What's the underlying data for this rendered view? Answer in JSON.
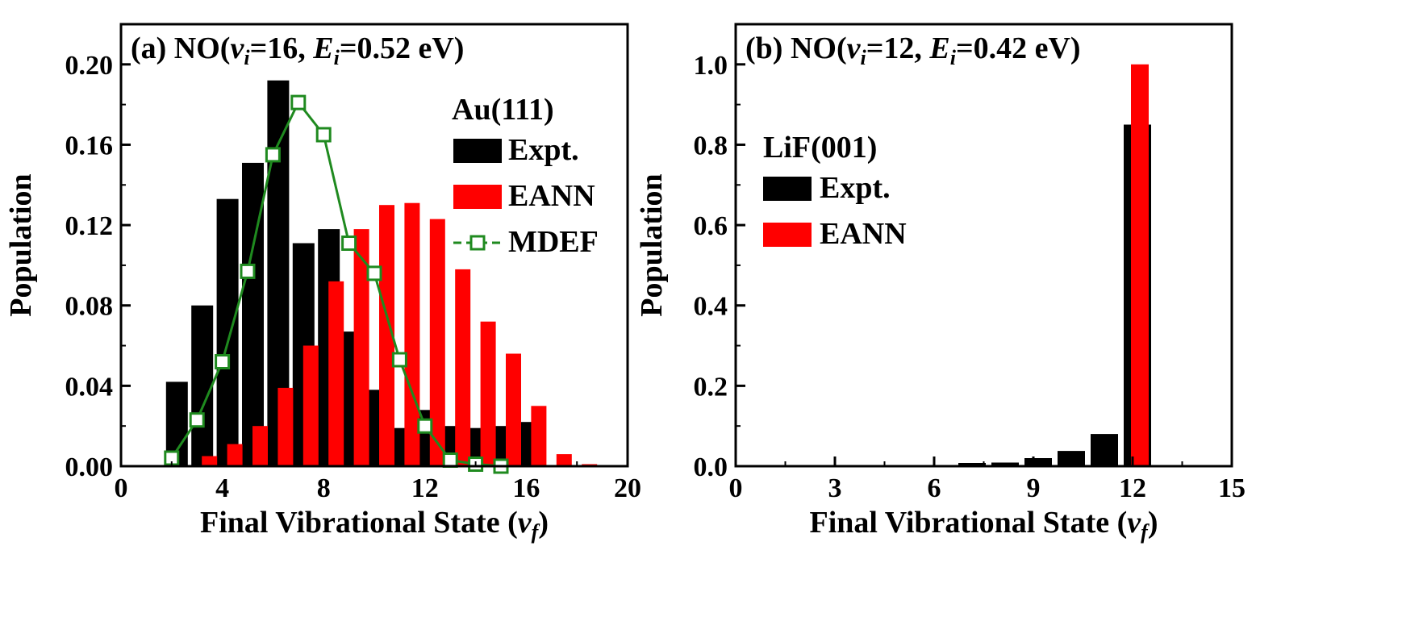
{
  "colors": {
    "expt": "#000000",
    "eann": "#ff0000",
    "mdef": "#1f8a1f",
    "frame": "#000000",
    "background": "#ffffff"
  },
  "chart_data": [
    {
      "type": "bar",
      "panel": "(a)",
      "title": {
        "prefix": "(a) NO(",
        "v": "v",
        "v_sub": "i",
        "v_value": "=16, ",
        "e": "E",
        "e_sub": "i",
        "e_value": "=0.52 eV)"
      },
      "xlabel": {
        "text": "Final Vibrational State (",
        "var": "v",
        "sub": "f",
        "close": ")"
      },
      "ylabel": "Population",
      "xlim": [
        0,
        20
      ],
      "ylim": [
        0,
        0.22
      ],
      "xticks": [
        0,
        4,
        8,
        12,
        16,
        20
      ],
      "xtick_labels": [
        "0",
        "4",
        "8",
        "12",
        "16",
        "20"
      ],
      "yticks": [
        0,
        0.04,
        0.08,
        0.12,
        0.16,
        0.2
      ],
      "ytick_labels": [
        "0.00",
        "0.04",
        "0.08",
        "0.12",
        "0.16",
        "0.20"
      ],
      "legend_title": "Au(111)",
      "legend_placement": "top-right",
      "series": [
        {
          "name": "Expt.",
          "kind": "bar",
          "color": "#000000",
          "x": [
            2,
            3,
            4,
            5,
            6,
            7,
            8,
            9,
            10,
            11,
            12,
            13,
            14,
            15,
            16
          ],
          "y": [
            0.042,
            0.08,
            0.133,
            0.151,
            0.192,
            0.111,
            0.118,
            0.067,
            0.038,
            0.019,
            0.028,
            0.02,
            0.019,
            0.02,
            0.022
          ]
        },
        {
          "name": "EANN",
          "kind": "bar",
          "color": "#ff0000",
          "x": [
            3,
            4,
            5,
            6,
            7,
            8,
            9,
            10,
            11,
            12,
            13,
            14,
            15,
            16,
            17,
            18
          ],
          "y": [
            0.005,
            0.011,
            0.02,
            0.039,
            0.06,
            0.092,
            0.118,
            0.13,
            0.131,
            0.123,
            0.098,
            0.072,
            0.056,
            0.03,
            0.006,
            0.001
          ]
        },
        {
          "name": "MDEF",
          "kind": "line-marker",
          "color": "#1f8a1f",
          "x": [
            2,
            3,
            4,
            5,
            6,
            7,
            8,
            9,
            10,
            11,
            12,
            13,
            14,
            15
          ],
          "y": [
            0.004,
            0.023,
            0.052,
            0.097,
            0.155,
            0.181,
            0.165,
            0.111,
            0.096,
            0.053,
            0.02,
            0.003,
            0.001,
            0.0
          ]
        }
      ]
    },
    {
      "type": "bar",
      "panel": "(b)",
      "title": {
        "prefix": "(b) NO(",
        "v": "v",
        "v_sub": "i",
        "v_value": "=12, ",
        "e": "E",
        "e_sub": "i",
        "e_value": "=0.42 eV)"
      },
      "xlabel": {
        "text": "Final Vibrational State (",
        "var": "v",
        "sub": "f",
        "close": ")"
      },
      "ylabel": "Population",
      "xlim": [
        0,
        15
      ],
      "ylim": [
        0,
        1.1
      ],
      "xticks": [
        0,
        3,
        6,
        9,
        12,
        15
      ],
      "xtick_labels": [
        "0",
        "3",
        "6",
        "9",
        "12",
        "15"
      ],
      "yticks": [
        0,
        0.2,
        0.4,
        0.6,
        0.8,
        1.0
      ],
      "ytick_labels": [
        "0.0",
        "0.2",
        "0.4",
        "0.6",
        "0.8",
        "1.0"
      ],
      "legend_title": "LiF(001)",
      "legend_placement": "top-left",
      "series": [
        {
          "name": "Expt.",
          "kind": "bar",
          "color": "#000000",
          "x": [
            7,
            8,
            9,
            10,
            11,
            12
          ],
          "y": [
            0.008,
            0.009,
            0.02,
            0.038,
            0.08,
            0.85
          ]
        },
        {
          "name": "EANN",
          "kind": "bar",
          "color": "#ff0000",
          "x": [
            12
          ],
          "y": [
            1.0
          ]
        }
      ]
    }
  ]
}
